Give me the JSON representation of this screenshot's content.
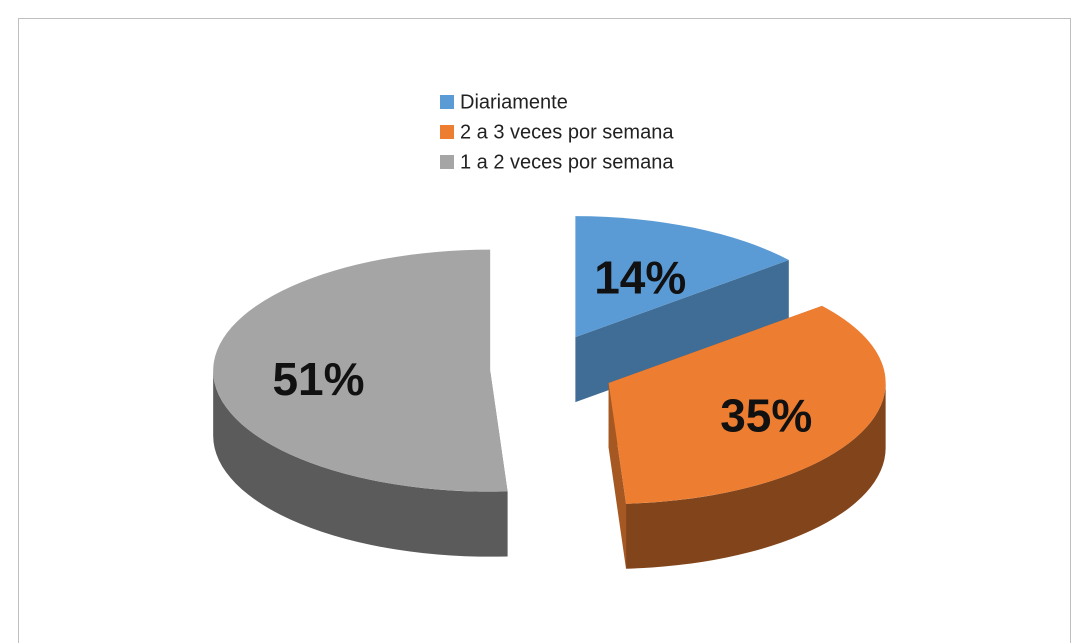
{
  "chart_data": {
    "type": "pie",
    "categories": [
      "Diariamente",
      "2 a 3 veces por semana",
      "1 a 2 veces por semana"
    ],
    "values": [
      14,
      35,
      51
    ],
    "value_labels": [
      "14%",
      "35%",
      "51%"
    ],
    "colors": [
      "#5b9bd5",
      "#ed7d31",
      "#a5a5a5"
    ],
    "legend": "top"
  }
}
